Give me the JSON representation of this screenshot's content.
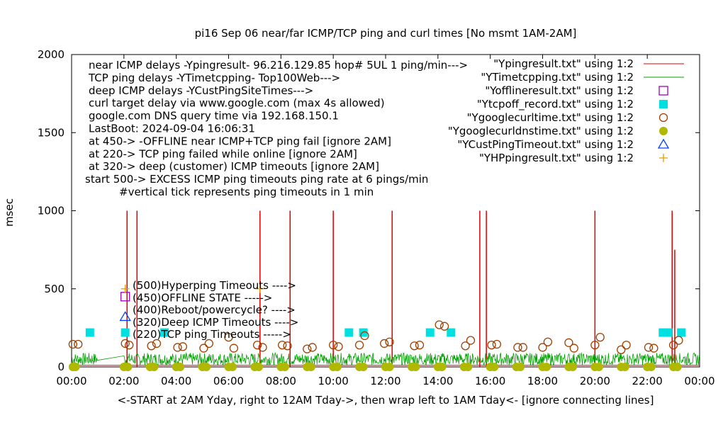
{
  "chart_data": {
    "type": "line",
    "title": "pi16 Sep 06  near/far ICMP/TCP ping and curl times [No msmt 1AM-2AM]",
    "xlabel": "<-START at 2AM Yday, right to 12AM Tday->, then wrap left to 1AM Tday<- [ignore connecting lines]",
    "ylabel": "msec",
    "xlim": [
      0,
      24
    ],
    "ylim": [
      0,
      2000
    ],
    "x_ticks": [
      "00:00",
      "02:00",
      "04:00",
      "06:00",
      "08:00",
      "10:00",
      "12:00",
      "14:00",
      "16:00",
      "18:00",
      "20:00",
      "22:00",
      "00:00"
    ],
    "y_ticks": [
      "0",
      "500",
      "1000",
      "1500",
      "2000"
    ],
    "grid": false,
    "legend_position": "top-right",
    "notes": [
      "near ICMP delays -Ypingresult- 96.216.129.85 hop# 5UL 1 ping/min--->",
      "TCP ping delays -YTimetcpping- Top100Web--->",
      "deep ICMP delays -YCustPingSiteTimes--->",
      "curl target delay via www.google.com (max 4s allowed)",
      "google.com DNS query time via 192.168.150.1",
      "LastBoot: 2024-09-04 16:06:31",
      "at 450-> -OFFLINE near ICMP+TCP ping fail [ignore 2AM]",
      "at 220-> TCP ping failed while online [ignore 2AM]",
      "at 320-> deep (customer) ICMP timeouts [ignore 2AM]",
      "start 500-> EXCESS ICMP ping timeouts ping rate at 6 pings/min",
      "#vertical tick represents ping timeouts in 1 min"
    ],
    "annotations": [
      "(500)Hyperping Timeouts ---->",
      "(450)OFFLINE STATE ----->",
      "(400)Reboot/powercycle? ---->",
      "(320)Deep ICMP Timeouts ---->",
      "(220)TCP ping Timeouts ----->"
    ],
    "series": [
      {
        "name": "\"Ypingresult.txt\" using 1:2",
        "style": "line",
        "color": "#e00000",
        "spikes": [
          [
            2.12,
            1000
          ],
          [
            2.5,
            1000
          ],
          [
            7.2,
            1000
          ],
          [
            8.35,
            1000
          ],
          [
            10.0,
            1000
          ],
          [
            12.25,
            1000
          ],
          [
            15.6,
            1000
          ],
          [
            15.85,
            1000
          ],
          [
            20.0,
            1000
          ],
          [
            22.95,
            1000
          ],
          [
            23.05,
            750
          ]
        ],
        "baseline": 10
      },
      {
        "name": "\"YTimetcpping.txt\" using 1:2",
        "style": "line",
        "color": "#00a000",
        "baseline_range": [
          10,
          90
        ]
      },
      {
        "name": "\"Yofflineresult.txt\" using 1:2",
        "style": "open-square",
        "color": "#a000c0",
        "x": [
          2.05
        ],
        "y": [
          450
        ]
      },
      {
        "name": "\"Ytcpoff_record.txt\" using 1:2",
        "style": "filled-square",
        "color": "#00e0e0",
        "x": [
          0.7,
          2.05,
          3.55,
          10.6,
          11.15,
          13.7,
          14.5,
          22.6,
          22.8,
          23.3
        ],
        "y": [
          220,
          220,
          220,
          220,
          220,
          220,
          220,
          220,
          220,
          220
        ]
      },
      {
        "name": "\"Ygooglecurltime.txt\" using 1:2",
        "style": "open-circle",
        "color": "#a04000",
        "x": [
          0.05,
          0.25,
          2.05,
          2.2,
          3.05,
          3.25,
          4.05,
          4.25,
          5.05,
          5.25,
          6.0,
          6.2,
          7.1,
          7.3,
          8.05,
          8.25,
          9.0,
          9.2,
          10.0,
          10.2,
          11.0,
          11.2,
          11.95,
          12.15,
          13.1,
          13.3,
          14.05,
          14.25,
          15.05,
          15.25,
          16.05,
          16.25,
          17.05,
          17.25,
          18.0,
          18.2,
          19.0,
          19.2,
          20.0,
          20.2,
          21.0,
          21.2,
          22.05,
          22.25,
          23.0,
          23.2
        ],
        "y": [
          145,
          145,
          150,
          140,
          135,
          150,
          125,
          130,
          120,
          150,
          190,
          120,
          140,
          125,
          140,
          135,
          115,
          125,
          140,
          130,
          140,
          200,
          150,
          160,
          135,
          140,
          270,
          260,
          135,
          170,
          140,
          145,
          125,
          125,
          125,
          160,
          155,
          120,
          140,
          190,
          110,
          140,
          125,
          120,
          140,
          170
        ]
      },
      {
        "name": "\"Ygooglecurldnstime.txt\" using 1:2",
        "style": "filled-circle",
        "color": "#b0b800",
        "x": [
          0.05,
          0.15,
          2.0,
          2.15,
          3.0,
          3.15,
          4.0,
          4.15,
          5.0,
          5.15,
          6.0,
          6.15,
          7.0,
          7.15,
          8.0,
          8.15,
          9.0,
          9.15,
          10.0,
          10.15,
          11.0,
          11.15,
          12.0,
          12.15,
          13.0,
          13.15,
          14.0,
          14.15,
          15.0,
          15.15,
          16.0,
          16.15,
          17.0,
          17.15,
          18.0,
          18.15,
          19.0,
          19.15,
          20.0,
          20.15,
          21.0,
          21.15,
          22.0,
          22.15,
          23.0,
          23.15
        ],
        "y": [
          0,
          0,
          0,
          0,
          0,
          0,
          0,
          0,
          0,
          0,
          0,
          0,
          0,
          0,
          0,
          0,
          0,
          0,
          0,
          0,
          0,
          0,
          0,
          0,
          0,
          0,
          0,
          0,
          0,
          0,
          0,
          0,
          0,
          0,
          0,
          0,
          0,
          0,
          0,
          0,
          0,
          0,
          0,
          0,
          0,
          0
        ]
      },
      {
        "name": "\"YCustPingTimeout.txt\" using 1:2",
        "style": "open-triangle",
        "color": "#0040ff",
        "x": [
          2.05
        ],
        "y": [
          320
        ]
      },
      {
        "name": "\"YHPpingresult.txt\" using 1:2",
        "style": "plus",
        "color": "#e0a000",
        "x": [
          2.05,
          7.2
        ],
        "y": [
          500,
          500
        ]
      }
    ]
  }
}
